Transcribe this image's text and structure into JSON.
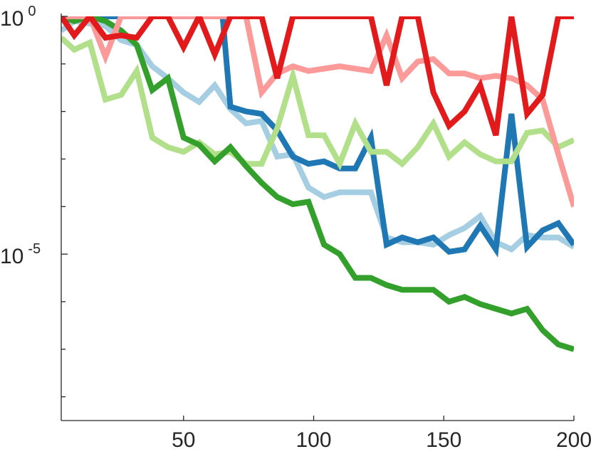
{
  "chart_data": {
    "type": "line",
    "title": "",
    "xlabel": "",
    "ylabel": "",
    "xlim": [
      3,
      200
    ],
    "ylim_log10": [
      -8.5,
      0
    ],
    "y_scale": "log",
    "grid": false,
    "legend": "none",
    "x_ticks": [
      50,
      100,
      150,
      200
    ],
    "x_tick_labels": [
      "50",
      "100",
      "150",
      "200"
    ],
    "y_ticks_major": [
      {
        "exp": 0,
        "base": "10",
        "sup": "0"
      },
      {
        "exp": -5,
        "base": "10",
        "sup": "-5"
      }
    ],
    "y_ticks_minor_exp": [
      -1,
      -2,
      -3,
      -4,
      -6,
      -7,
      -8
    ],
    "series": [
      {
        "color": "#a6cee3",
        "x": [
          3,
          8,
          14,
          20,
          26,
          32,
          38,
          44,
          50,
          56,
          62,
          68,
          74,
          80,
          86,
          92,
          98,
          104,
          110,
          116,
          122,
          128,
          134,
          140,
          146,
          152,
          158,
          164,
          170,
          176,
          182,
          188,
          194,
          200
        ],
        "log10_y": [
          -0.3,
          -0.1,
          -0.15,
          -0.2,
          -0.5,
          -0.6,
          -1.05,
          -1.3,
          -1.6,
          -1.8,
          -1.45,
          -1.95,
          -2.25,
          -2.2,
          -2.95,
          -2.9,
          -3.6,
          -3.8,
          -3.7,
          -3.7,
          -3.7,
          -4.65,
          -4.75,
          -4.75,
          -4.8,
          -4.6,
          -4.45,
          -4.2,
          -4.75,
          -4.9,
          -4.6,
          -4.65,
          -4.65,
          -4.85
        ]
      },
      {
        "color": "#1f78b4",
        "x": [
          3,
          8,
          14,
          20,
          26,
          32,
          38,
          44,
          50,
          56,
          62,
          65,
          68,
          74,
          80,
          86,
          92,
          98,
          104,
          110,
          116,
          122,
          128,
          134,
          140,
          146,
          152,
          158,
          164,
          170,
          176,
          182,
          188,
          194,
          200
        ],
        "log10_y": [
          0,
          0,
          0,
          0,
          0,
          0,
          0,
          0,
          0,
          0,
          0,
          0,
          -1.9,
          -2.0,
          -2.05,
          -2.4,
          -2.95,
          -3.1,
          -3.05,
          -3.2,
          -3.2,
          -2.55,
          -4.8,
          -4.65,
          -4.75,
          -4.65,
          -4.95,
          -4.9,
          -4.4,
          -4.9,
          -2.05,
          -4.85,
          -4.5,
          -4.35,
          -4.8
        ]
      },
      {
        "color": "#b2df8a",
        "x": [
          3,
          8,
          14,
          20,
          26,
          32,
          38,
          44,
          50,
          56,
          62,
          68,
          74,
          80,
          86,
          92,
          98,
          104,
          110,
          116,
          122,
          128,
          134,
          140,
          146,
          152,
          158,
          164,
          170,
          176,
          182,
          188,
          194,
          200
        ],
        "log10_y": [
          -0.45,
          -0.7,
          -0.55,
          -1.75,
          -1.65,
          -1.15,
          -2.55,
          -2.75,
          -2.85,
          -2.65,
          -2.9,
          -2.85,
          -3.1,
          -3.1,
          -2.35,
          -1.25,
          -2.5,
          -2.5,
          -3.1,
          -2.25,
          -2.85,
          -2.85,
          -3.1,
          -2.75,
          -2.25,
          -2.95,
          -2.65,
          -2.9,
          -3.05,
          -3.05,
          -2.45,
          -2.4,
          -2.75,
          -2.6
        ]
      },
      {
        "color": "#33a02c",
        "x": [
          3,
          8,
          14,
          20,
          26,
          32,
          38,
          44,
          50,
          56,
          62,
          68,
          74,
          80,
          86,
          92,
          98,
          104,
          110,
          116,
          122,
          128,
          134,
          140,
          146,
          152,
          158,
          164,
          170,
          176,
          182,
          188,
          194,
          200
        ],
        "log10_y": [
          0,
          -0.1,
          0,
          -0.1,
          -0.3,
          -0.6,
          -1.55,
          -1.3,
          -2.55,
          -2.7,
          -3.05,
          -2.75,
          -3.15,
          -3.5,
          -3.8,
          -3.95,
          -3.9,
          -4.8,
          -5.0,
          -5.5,
          -5.5,
          -5.65,
          -5.75,
          -5.75,
          -5.75,
          -6.0,
          -5.9,
          -6.05,
          -6.15,
          -6.25,
          -6.15,
          -6.6,
          -6.9,
          -7.0
        ]
      },
      {
        "color": "#fb9a99",
        "x": [
          3,
          8,
          14,
          20,
          26,
          32,
          38,
          44,
          50,
          56,
          62,
          68,
          74,
          80,
          86,
          92,
          98,
          104,
          110,
          116,
          122,
          128,
          134,
          140,
          146,
          152,
          158,
          164,
          170,
          176,
          182,
          188,
          194,
          200
        ],
        "log10_y": [
          0,
          0,
          0,
          -0.85,
          0,
          0,
          0,
          0,
          0,
          0,
          0,
          0,
          0,
          -1.6,
          -1.2,
          -1.05,
          -1.15,
          -1.1,
          -1.05,
          -1.1,
          -1.15,
          -0.4,
          -1.3,
          -0.95,
          -0.9,
          -1.2,
          -1.2,
          -1.3,
          -1.25,
          -1.3,
          -1.45,
          -1.75,
          -2.9,
          -4.0
        ]
      },
      {
        "color": "#e31a1c",
        "x": [
          3,
          8,
          14,
          20,
          26,
          32,
          38,
          44,
          50,
          56,
          62,
          68,
          74,
          80,
          86,
          92,
          98,
          104,
          110,
          116,
          122,
          128,
          134,
          140,
          146,
          152,
          158,
          164,
          170,
          176,
          182,
          188,
          194,
          200
        ],
        "log10_y": [
          0,
          -0.4,
          0,
          -0.45,
          -0.4,
          -0.45,
          0,
          0,
          -0.65,
          0,
          -0.8,
          0,
          0,
          0,
          -1.3,
          0,
          0,
          0,
          0,
          0,
          0,
          -1.45,
          0,
          0,
          -1.6,
          -2.3,
          -2.0,
          -1.45,
          -2.5,
          0,
          -2.05,
          -1.65,
          0,
          0
        ]
      }
    ]
  }
}
